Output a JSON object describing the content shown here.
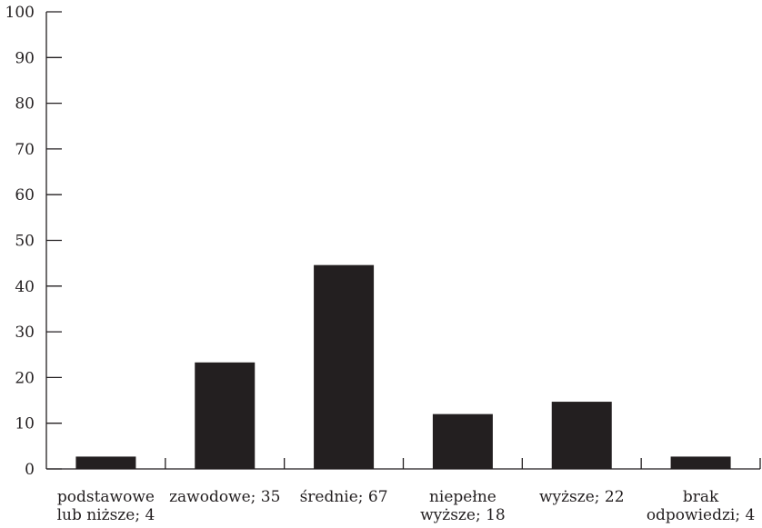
{
  "chart_data": {
    "type": "bar",
    "categories": [
      [
        "podstawowe",
        "lub niższe; 4"
      ],
      [
        "zawodowe; 35"
      ],
      [
        "średnie; 67"
      ],
      [
        "niepełne",
        "wyższe; 18"
      ],
      [
        "wyższe; 22"
      ],
      [
        "brak",
        "odpowiedzi; 4"
      ]
    ],
    "values": [
      2.7,
      23.3,
      44.6,
      12.0,
      14.7,
      2.7
    ],
    "ylim": [
      0,
      100
    ],
    "yticks": [
      0,
      10,
      20,
      30,
      40,
      50,
      60,
      70,
      80,
      90,
      100
    ],
    "title": "",
    "xlabel": "",
    "ylabel": "",
    "grid": false,
    "bar_color": "#231f20"
  }
}
